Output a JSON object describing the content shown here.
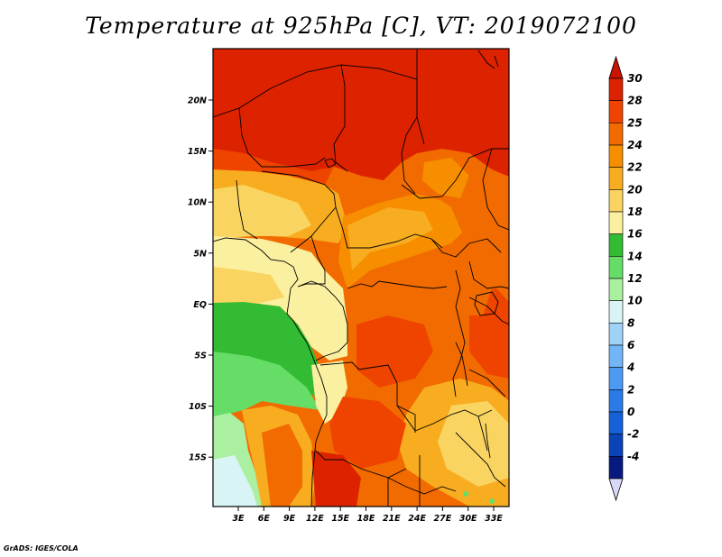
{
  "map": {
    "title": "Temperature at 925hPa [C], VT: 2019072100",
    "credit": "GrADS: IGES/COLA",
    "lon_labels": [
      "3E",
      "6E",
      "9E",
      "12E",
      "15E",
      "18E",
      "21E",
      "24E",
      "27E",
      "30E",
      "33E"
    ],
    "lat_labels": [
      "20N",
      "15N",
      "10N",
      "5N",
      "EQ",
      "5S",
      "10S",
      "15S"
    ],
    "colorbar": {
      "labels": [
        "30",
        "28",
        "25",
        "24",
        "22",
        "20",
        "18",
        "16",
        "14",
        "12",
        "10",
        "8",
        "6",
        "4",
        "2",
        "0",
        "-2",
        "-4"
      ],
      "colors": [
        "#dd2200",
        "#ee4400",
        "#f26b00",
        "#f68e00",
        "#f8ac20",
        "#fad460",
        "#faf0a0",
        "#33bb33",
        "#66dd66",
        "#aaf0a0",
        "#d8f4f4",
        "#a0d2f8",
        "#72b6f8",
        "#4c9af4",
        "#2a7ae8",
        "#1660d8",
        "#0c44b8",
        "#061a80"
      ],
      "top_arrow_color": "#c81400",
      "bottom_arrow_color": "#d8d8f8"
    }
  }
}
